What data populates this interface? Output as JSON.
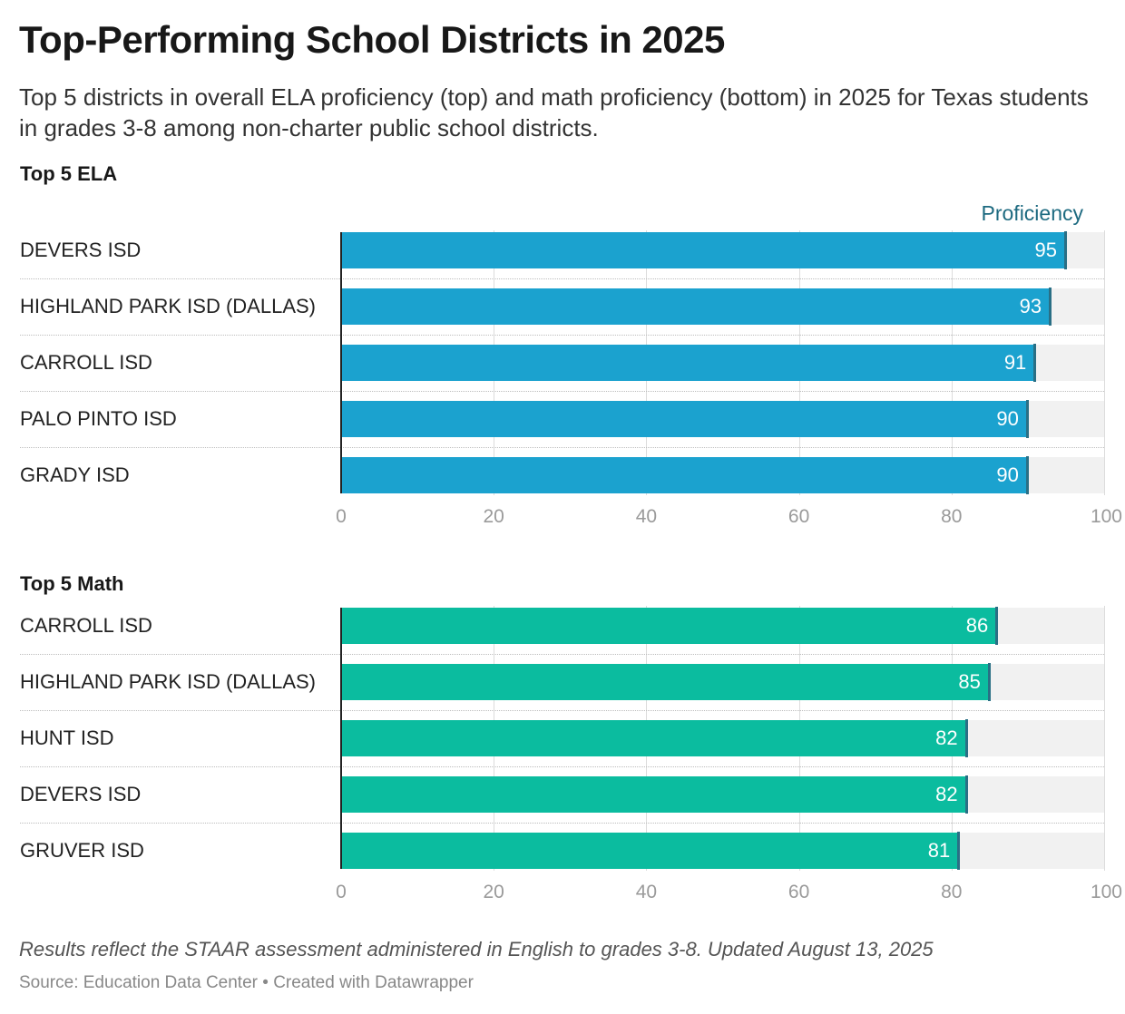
{
  "title": "Top-Performing School Districts in 2025",
  "subtitle": "Top 5 districts in overall ELA proficiency (top) and math proficiency (bottom) in 2025 for Texas students in grades 3-8 among non-charter public school districts.",
  "notes": "Results reflect the STAAR assessment administered in English to grades 3-8. Updated August 13, 2025",
  "source": "Source: Education Data Center • Created with Datawrapper",
  "chart_data": [
    {
      "type": "bar",
      "title": "Top 5 ELA",
      "column_header": "Proficiency",
      "color": "#1ba2cf",
      "categories": [
        "DEVERS ISD",
        "HIGHLAND PARK ISD (DALLAS)",
        "CARROLL ISD",
        "PALO PINTO ISD",
        "GRADY ISD"
      ],
      "values": [
        95,
        93,
        91,
        90,
        90
      ],
      "xlim": [
        0,
        100
      ],
      "ticks": [
        "0",
        "20",
        "40",
        "60",
        "80",
        "100"
      ]
    },
    {
      "type": "bar",
      "title": "Top 5 Math",
      "color": "#0bbc9f",
      "categories": [
        "CARROLL ISD",
        "HIGHLAND PARK ISD (DALLAS)",
        "HUNT ISD",
        "DEVERS ISD",
        "GRUVER ISD"
      ],
      "values": [
        86,
        85,
        82,
        82,
        81
      ],
      "xlim": [
        0,
        100
      ],
      "ticks": [
        "0",
        "20",
        "40",
        "60",
        "80",
        "100"
      ]
    }
  ]
}
